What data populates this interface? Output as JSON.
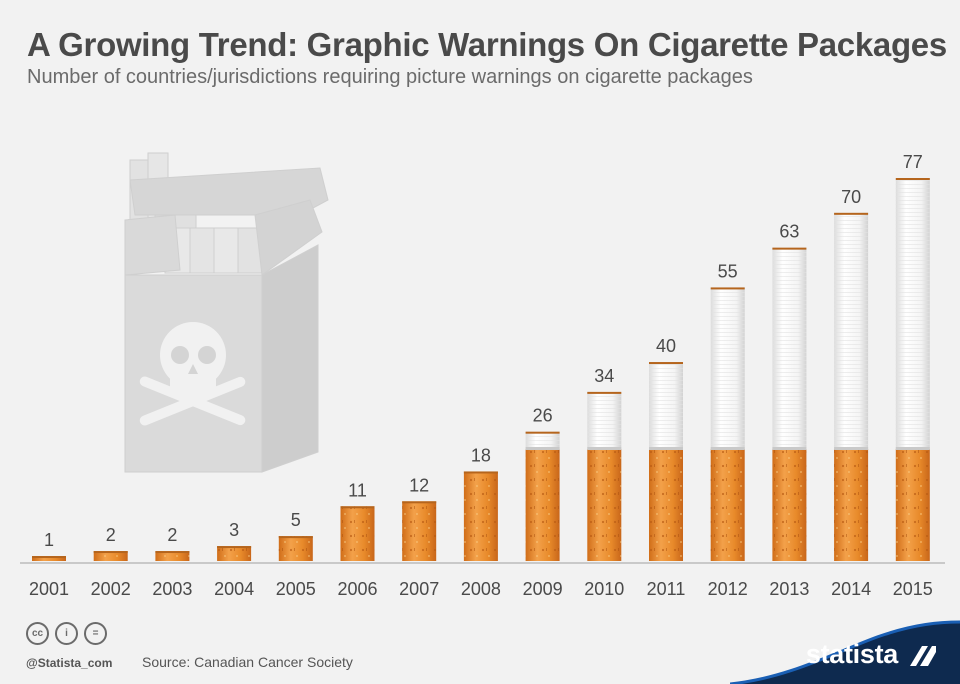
{
  "header": {
    "title": "A Growing Trend: Graphic Warnings On Cigarette Packages",
    "subtitle": "Number of countries/jurisdictions requiring picture warnings on cigarette packages"
  },
  "chart_data": {
    "type": "bar",
    "title": "A Growing Trend: Graphic Warnings On Cigarette Packages",
    "subtitle": "Number of countries/jurisdictions requiring picture warnings on cigarette packages",
    "categories": [
      "2001",
      "2002",
      "2003",
      "2004",
      "2005",
      "2006",
      "2007",
      "2008",
      "2009",
      "2010",
      "2011",
      "2012",
      "2013",
      "2014",
      "2015"
    ],
    "values": [
      1,
      2,
      2,
      3,
      5,
      11,
      12,
      18,
      26,
      34,
      40,
      55,
      63,
      70,
      77
    ],
    "xlabel": "",
    "ylabel": "",
    "ylim": [
      0,
      80
    ],
    "grid": false,
    "data_labels": true
  },
  "footer": {
    "handle": "@Statista_com",
    "source": "Source: Canadian Cancer Society",
    "brand": "statista",
    "license_icons": [
      "cc",
      "i",
      "="
    ]
  },
  "colors": {
    "background": "#f2f2f2",
    "filter": "#ec8a2c",
    "paper": "#ffffff",
    "brand": "#0e2a4f"
  }
}
